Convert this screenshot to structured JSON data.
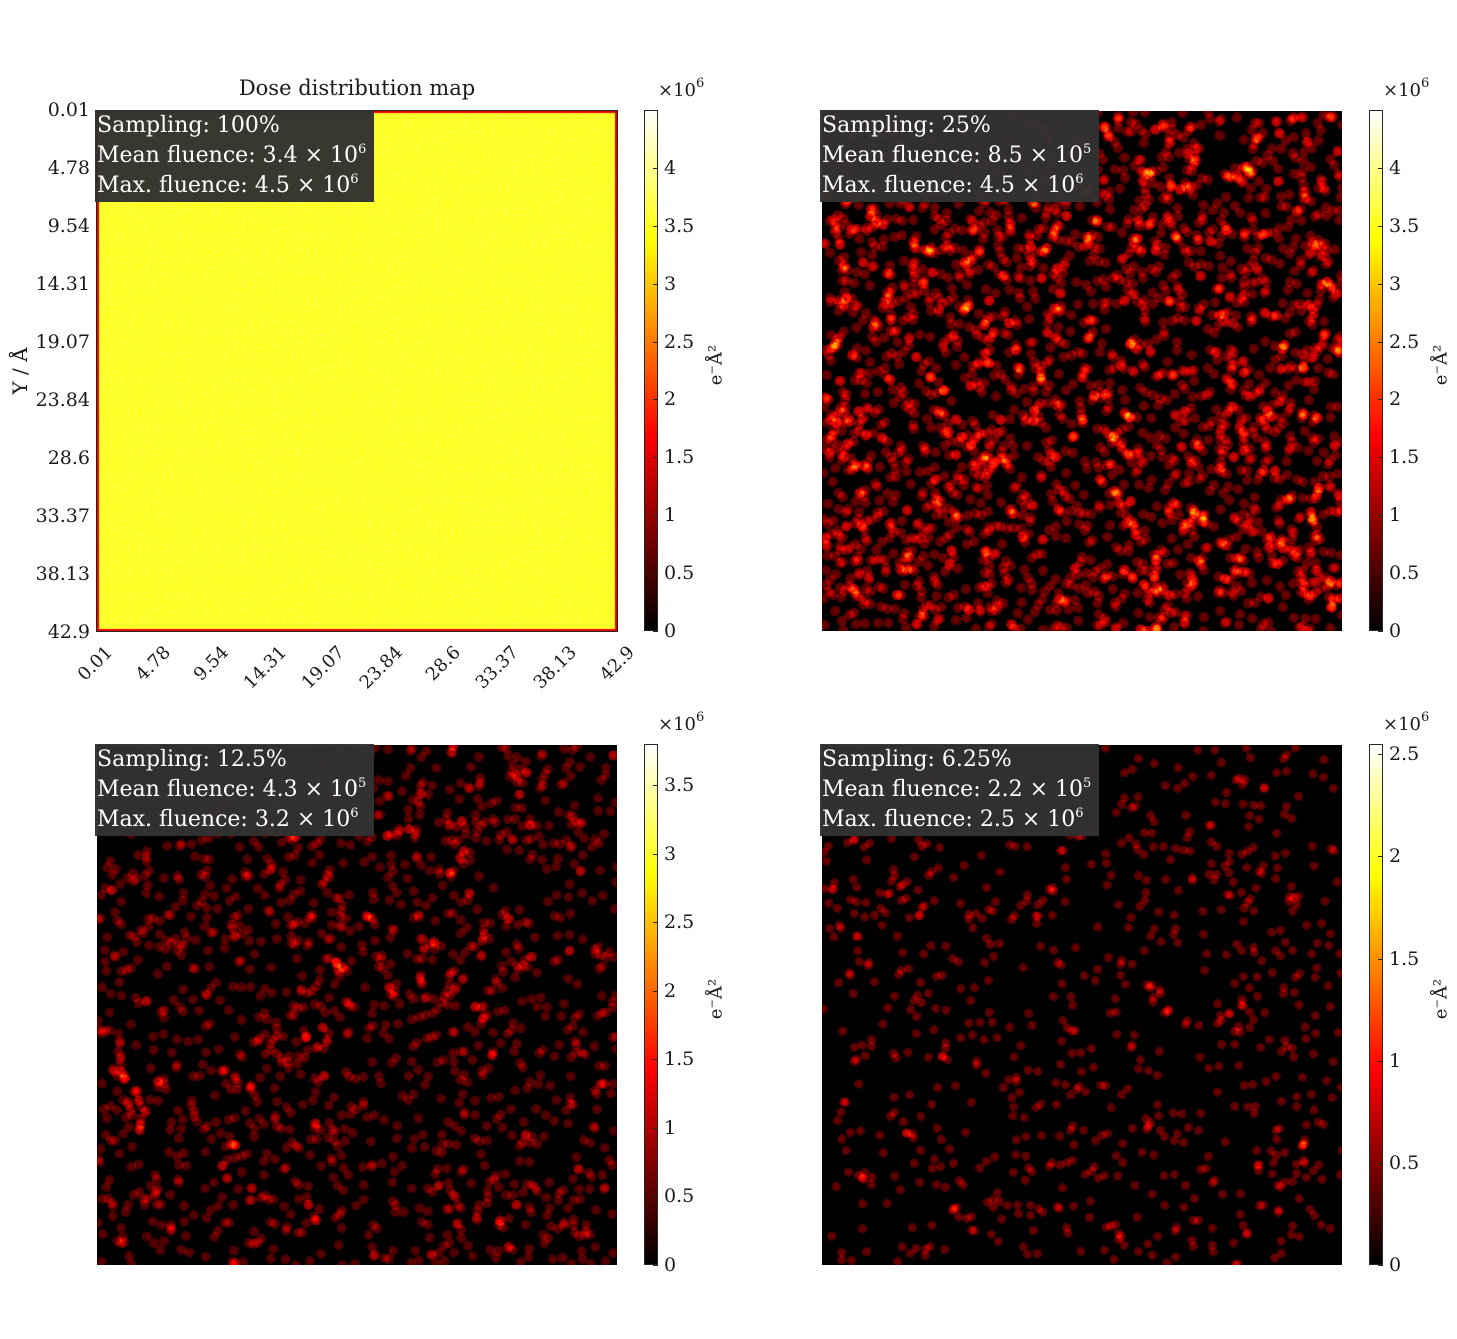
{
  "panels": [
    {
      "id": "p100",
      "title": "Dose distribution map",
      "ylabel": "Y / Å",
      "tick_labels": [
        "0.01",
        "4.78",
        "9.54",
        "14.31",
        "19.07",
        "23.84",
        "28.6",
        "33.37",
        "38.13",
        "42.9"
      ],
      "sampling_label": "Sampling:",
      "sampling_value": "100%",
      "mean_label": "Mean fluence:",
      "mean_mantissa": "3.4",
      "mean_exponent": "6",
      "max_label": "Max. fluence:",
      "max_mantissa": "4.5",
      "max_exponent": "6",
      "colorbar_exponent": "6",
      "colorbar_unit": "e⁻Å²",
      "colorbar_ticks": [
        "0",
        "0.5",
        "1",
        "1.5",
        "2",
        "2.5",
        "3",
        "3.5",
        "4"
      ]
    },
    {
      "id": "p25",
      "sampling_label": "Sampling:",
      "sampling_value": "25%",
      "mean_label": "Mean fluence:",
      "mean_mantissa": "8.5",
      "mean_exponent": "5",
      "max_label": "Max. fluence:",
      "max_mantissa": "4.5",
      "max_exponent": "6",
      "colorbar_exponent": "6",
      "colorbar_unit": "e⁻Å²",
      "colorbar_ticks": [
        "0",
        "0.5",
        "1",
        "1.5",
        "2",
        "2.5",
        "3",
        "3.5",
        "4"
      ]
    },
    {
      "id": "p12",
      "sampling_label": "Sampling:",
      "sampling_value": "12.5%",
      "mean_label": "Mean fluence:",
      "mean_mantissa": "4.3",
      "mean_exponent": "5",
      "max_label": "Max. fluence:",
      "max_mantissa": "3.2",
      "max_exponent": "6",
      "colorbar_exponent": "6",
      "colorbar_unit": "e⁻Å²",
      "colorbar_ticks": [
        "0",
        "0.5",
        "1",
        "1.5",
        "2",
        "2.5",
        "3",
        "3.5"
      ]
    },
    {
      "id": "p6",
      "sampling_label": "Sampling:",
      "sampling_value": "6.25%",
      "mean_label": "Mean fluence:",
      "mean_mantissa": "2.2",
      "mean_exponent": "5",
      "max_label": "Max. fluence:",
      "max_mantissa": "2.5",
      "max_exponent": "6",
      "colorbar_exponent": "6",
      "colorbar_unit": "e⁻Å²",
      "colorbar_ticks": [
        "0",
        "0.5",
        "1",
        "1.5",
        "2",
        "2.5"
      ]
    }
  ],
  "chart_data": [
    {
      "type": "heatmap",
      "title": "Dose distribution map",
      "xlabel": "",
      "ylabel": "Y / Å",
      "x_ticks": [
        0.01,
        4.78,
        9.54,
        14.31,
        19.07,
        23.84,
        28.6,
        33.37,
        38.13,
        42.9
      ],
      "y_ticks": [
        0.01,
        4.78,
        9.54,
        14.31,
        19.07,
        23.84,
        28.6,
        33.37,
        38.13,
        42.9
      ],
      "xlim": [
        0.01,
        42.9
      ],
      "ylim": [
        0.01,
        42.9
      ],
      "colormap": "hot",
      "color_range": [
        0,
        4500000
      ],
      "colorbar_label": "e⁻Å²",
      "sampling_percent": 100,
      "mean_fluence": 3400000,
      "max_fluence": 4500000
    },
    {
      "type": "heatmap",
      "colormap": "hot",
      "color_range": [
        0,
        4500000
      ],
      "colorbar_label": "e⁻Å²",
      "sampling_percent": 25,
      "mean_fluence": 850000,
      "max_fluence": 4500000
    },
    {
      "type": "heatmap",
      "colormap": "hot",
      "color_range": [
        0,
        3800000
      ],
      "colorbar_label": "e⁻Å²",
      "sampling_percent": 12.5,
      "mean_fluence": 430000,
      "max_fluence": 3200000
    },
    {
      "type": "heatmap",
      "colormap": "hot",
      "color_range": [
        0,
        2550000
      ],
      "colorbar_label": "e⁻Å²",
      "sampling_percent": 6.25,
      "mean_fluence": 220000,
      "max_fluence": 2500000
    }
  ]
}
